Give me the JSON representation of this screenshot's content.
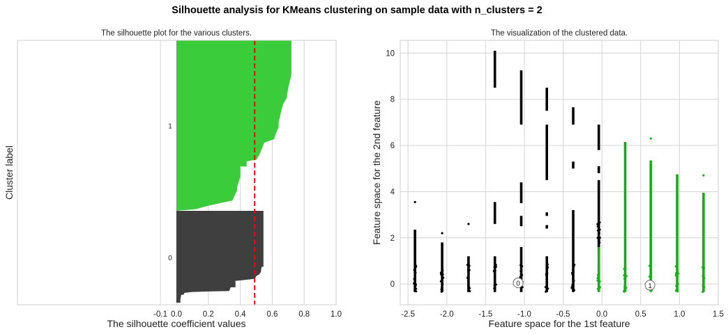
{
  "figure": {
    "suptitle": "Silhouette analysis for KMeans clustering on sample data with n_clusters = 2"
  },
  "chart_data": [
    {
      "type": "area",
      "title": "The silhouette plot for the various clusters.",
      "xlabel": "The silhouette coefficient values",
      "ylabel": "Cluster label",
      "xlim": [
        -0.1,
        1.0
      ],
      "xticks": [
        "-0.1",
        "0.0",
        "0.2",
        "0.4",
        "0.6",
        "0.8",
        "1.0"
      ],
      "grid": true,
      "average_silhouette_score": 0.49,
      "average_line_color": "#ff0000",
      "clusters": [
        {
          "label": "0",
          "color": "#3f3f3f",
          "silhouette_profile": [
            [
              0.0,
              0.015
            ],
            [
              0.025,
              0.015
            ],
            [
              0.025,
              0.05
            ],
            [
              0.03,
              0.1
            ],
            [
              0.045,
              0.1
            ],
            [
              0.05,
              0.12
            ],
            [
              0.1,
              0.13
            ],
            [
              0.2,
              0.135
            ],
            [
              0.33,
              0.14
            ],
            [
              0.34,
              0.18
            ],
            [
              0.37,
              0.18
            ],
            [
              0.37,
              0.25
            ],
            [
              0.38,
              0.25
            ],
            [
              0.49,
              0.27
            ],
            [
              0.5,
              0.3
            ],
            [
              0.52,
              0.32
            ],
            [
              0.53,
              0.35
            ],
            [
              0.53,
              0.37
            ],
            [
              0.535,
              0.4
            ],
            [
              0.545,
              0.4
            ],
            [
              0.545,
              1.0
            ]
          ]
        },
        {
          "label": "1",
          "color": "#3acc3a",
          "silhouette_profile": [
            [
              0.0,
              0.0
            ],
            [
              0.12,
              0.01
            ],
            [
              0.2,
              0.03
            ],
            [
              0.35,
              0.06
            ],
            [
              0.38,
              0.12
            ],
            [
              0.38,
              0.14
            ],
            [
              0.4,
              0.2
            ],
            [
              0.4,
              0.26
            ],
            [
              0.44,
              0.26
            ],
            [
              0.44,
              0.29
            ],
            [
              0.5,
              0.3
            ],
            [
              0.52,
              0.33
            ],
            [
              0.55,
              0.4
            ],
            [
              0.61,
              0.42
            ],
            [
              0.63,
              0.47
            ],
            [
              0.64,
              0.49
            ],
            [
              0.64,
              0.52
            ],
            [
              0.65,
              0.56
            ],
            [
              0.66,
              0.6
            ],
            [
              0.67,
              0.63
            ],
            [
              0.69,
              0.66
            ],
            [
              0.7,
              0.72
            ],
            [
              0.71,
              0.76
            ],
            [
              0.72,
              0.8
            ],
            [
              0.72,
              0.9
            ],
            [
              0.72,
              1.0
            ]
          ]
        }
      ]
    },
    {
      "type": "scatter",
      "title": "The visualization of the clustered data.",
      "xlabel": "Feature space for the 1st feature",
      "ylabel": "Feature space for the 2nd feature",
      "xlim": [
        -2.6,
        1.5
      ],
      "ylim": [
        -0.9,
        10.55
      ],
      "xticks": [
        "-2.5",
        "-2.0",
        "-1.5",
        "-1.0",
        "-0.5",
        "0.0",
        "0.5",
        "1.0",
        "1.5"
      ],
      "yticks": [
        "0",
        "2",
        "4",
        "6",
        "8",
        "10"
      ],
      "grid": true,
      "columns": [
        {
          "x": -2.41,
          "cluster": 0,
          "min": -0.35,
          "max": 2.35,
          "outliers": [
            3.55
          ]
        },
        {
          "x": -2.06,
          "cluster": 0,
          "min": -0.35,
          "max": 1.8,
          "outliers": [
            2.2
          ]
        },
        {
          "x": -1.72,
          "cluster": 0,
          "min": -0.35,
          "max": 1.2,
          "outliers": [
            2.6
          ]
        },
        {
          "x": -1.38,
          "cluster": 0,
          "min": -0.35,
          "max": 1.2,
          "segments": [
            [
              2.6,
              3.55
            ],
            [
              8.5,
              10.1
            ]
          ]
        },
        {
          "x": -1.04,
          "cluster": 0,
          "min": -0.35,
          "max": 1.6,
          "segments": [
            [
              2.5,
              2.95
            ],
            [
              3.5,
              4.4
            ],
            [
              6.9,
              9.25
            ]
          ]
        },
        {
          "x": -0.71,
          "cluster": 0,
          "min": -0.35,
          "max": 1.2,
          "segments": [
            [
              2.4,
              2.55
            ],
            [
              2.95,
              3.1
            ],
            [
              4.5,
              6.9
            ],
            [
              7.5,
              8.5
            ]
          ]
        },
        {
          "x": -0.37,
          "cluster": 0,
          "min": -0.35,
          "max": 3.2,
          "segments": [
            [
              5.0,
              5.3
            ],
            [
              6.9,
              7.65
            ]
          ]
        },
        {
          "x": -0.04,
          "cluster": 0,
          "min": 1.5,
          "max": 4.5,
          "segments": [
            [
              4.8,
              5.1
            ],
            [
              5.8,
              6.9
            ]
          ]
        },
        {
          "x": -0.04,
          "cluster": 1,
          "min": -0.35,
          "max": 1.6
        },
        {
          "x": 0.3,
          "cluster": 1,
          "min": -0.35,
          "max": 6.15
        },
        {
          "x": 0.63,
          "cluster": 1,
          "min": -0.35,
          "max": 5.35,
          "outliers": [
            6.3
          ]
        },
        {
          "x": 0.97,
          "cluster": 1,
          "min": -0.35,
          "max": 4.75
        },
        {
          "x": 1.31,
          "cluster": 1,
          "min": -0.35,
          "max": 3.95,
          "outliers": [
            4.7
          ]
        }
      ],
      "centers": [
        {
          "label": "0",
          "x": -1.08,
          "y": 0.05
        },
        {
          "label": "1",
          "x": 0.62,
          "y": -0.05
        }
      ],
      "cluster_colors": [
        "#000000",
        "#13b013"
      ]
    }
  ]
}
